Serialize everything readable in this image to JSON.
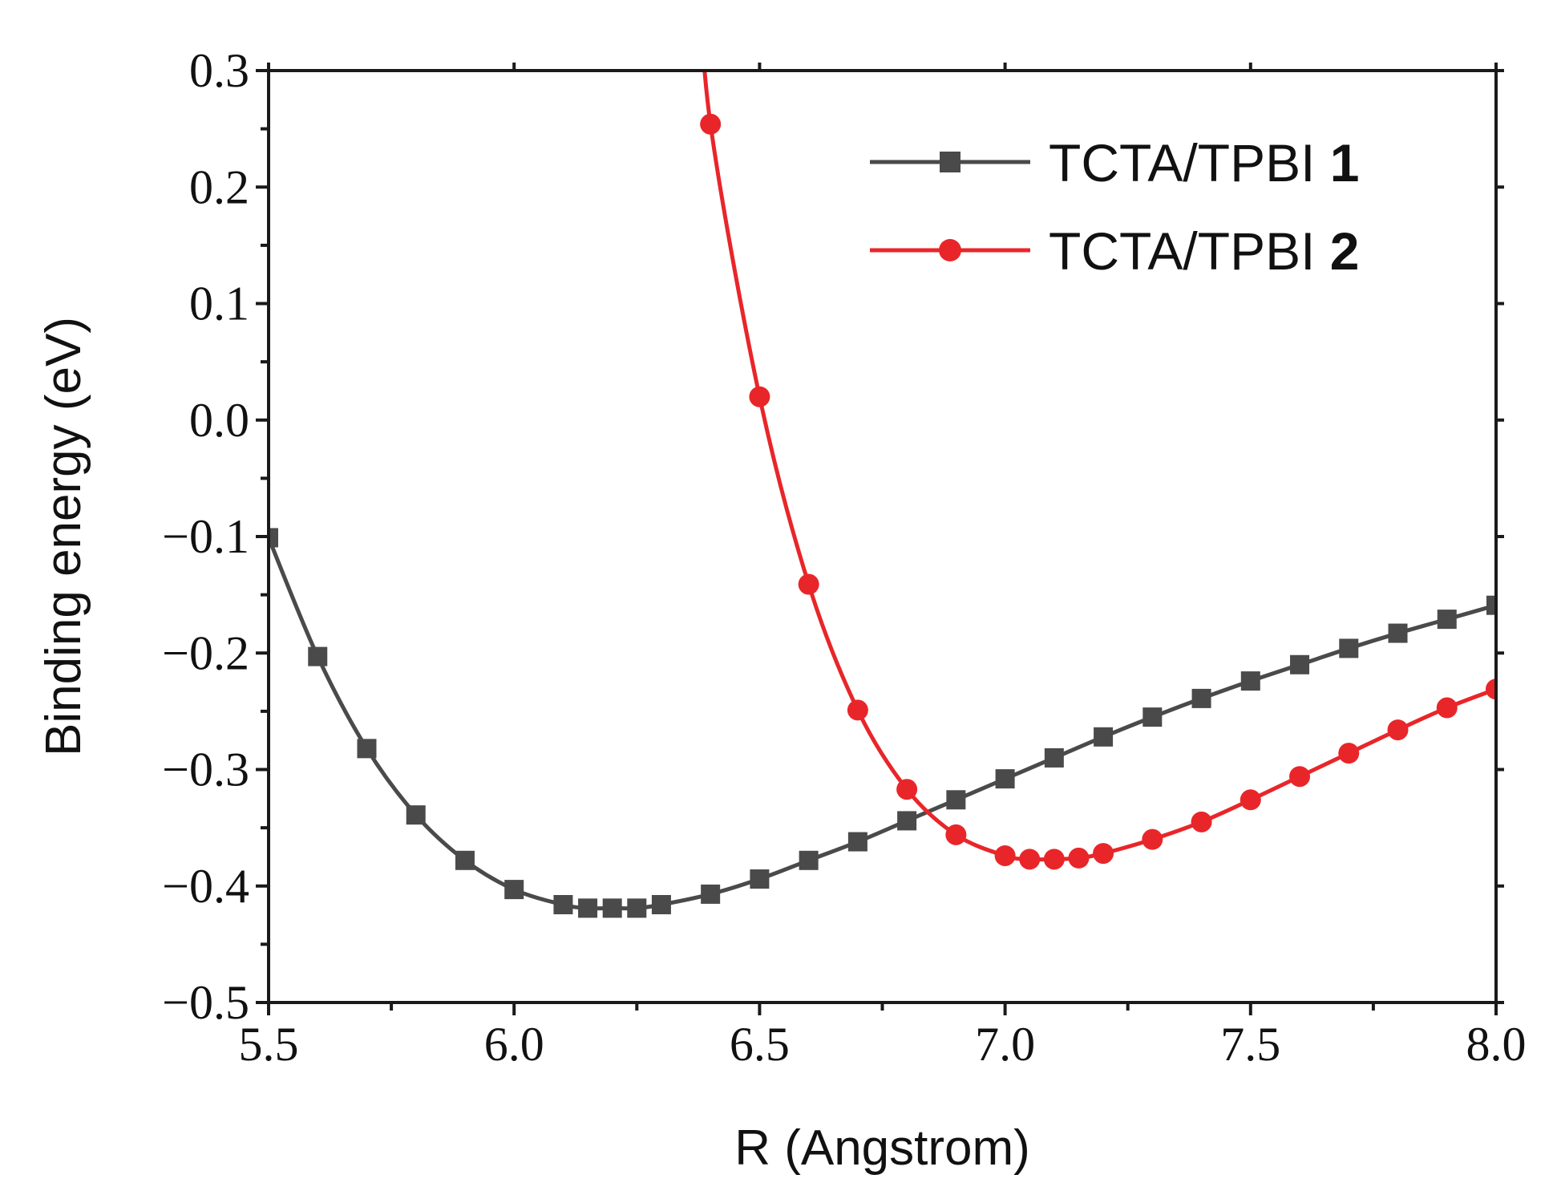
{
  "chart_data": {
    "type": "line",
    "title": "",
    "xlabel": "R (Angstrom)",
    "ylabel": "Binding energy (eV)",
    "xlim": [
      5.5,
      8.0
    ],
    "ylim": [
      -0.5,
      0.3
    ],
    "x_ticks": [
      5.5,
      6.0,
      6.5,
      7.0,
      7.5,
      8.0
    ],
    "x_tick_labels": [
      "5.5",
      "6.0",
      "6.5",
      "7.0",
      "7.5",
      "8.0"
    ],
    "y_ticks": [
      0.3,
      0.2,
      0.1,
      0.0,
      -0.1,
      -0.2,
      -0.3,
      -0.4,
      -0.5
    ],
    "y_tick_labels": [
      "0.3",
      "0.2",
      "0.1",
      "0.0",
      "−0.1",
      "−0.2",
      "−0.3",
      "−0.4",
      "−0.5"
    ],
    "grid": false,
    "legend_position": "top-right",
    "series": [
      {
        "name": "TCTA/TPBI",
        "name_number": "1",
        "color": "#4a4a4a",
        "marker": "square",
        "x": [
          5.5,
          5.6,
          5.7,
          5.8,
          5.9,
          6.0,
          6.1,
          6.15,
          6.2,
          6.25,
          6.3,
          6.4,
          6.5,
          6.6,
          6.7,
          6.8,
          6.9,
          7.0,
          7.1,
          7.2,
          7.3,
          7.4,
          7.5,
          7.6,
          7.7,
          7.8,
          7.9,
          8.0
        ],
        "y": [
          -0.101,
          -0.203,
          -0.282,
          -0.339,
          -0.378,
          -0.403,
          -0.416,
          -0.419,
          -0.419,
          -0.419,
          -0.416,
          -0.407,
          -0.394,
          -0.378,
          -0.362,
          -0.344,
          -0.326,
          -0.308,
          -0.29,
          -0.272,
          -0.255,
          -0.239,
          -0.224,
          -0.21,
          -0.196,
          -0.183,
          -0.171,
          -0.159
        ]
      },
      {
        "name": "TCTA/TPBI",
        "name_number": "2",
        "color": "#e8262a",
        "marker": "circle",
        "x": [
          6.4,
          6.5,
          6.6,
          6.7,
          6.8,
          6.9,
          7.0,
          7.05,
          7.1,
          7.15,
          7.2,
          7.3,
          7.4,
          7.5,
          7.6,
          7.7,
          7.8,
          7.9,
          8.0
        ],
        "y": [
          0.254,
          0.02,
          -0.141,
          -0.249,
          -0.317,
          -0.356,
          -0.374,
          -0.377,
          -0.377,
          -0.376,
          -0.372,
          -0.36,
          -0.345,
          -0.326,
          -0.306,
          -0.286,
          -0.266,
          -0.247,
          -0.231
        ]
      }
    ]
  }
}
